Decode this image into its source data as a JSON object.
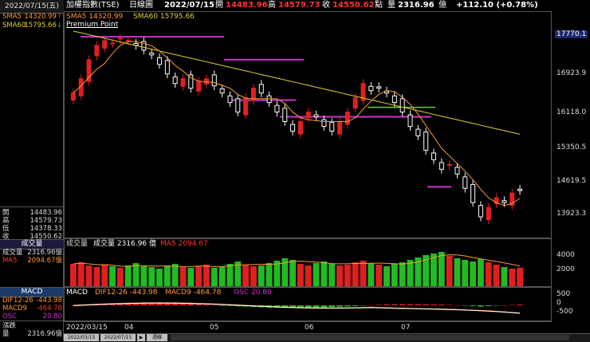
{
  "header": {
    "index_name": "加權指數(TSE)",
    "period": "日線圖",
    "date": "2022/07/15",
    "open_label": "開",
    "open": "14483.96",
    "high_label": "高",
    "high": "14579.73",
    "close_label": "收",
    "close": "14550.62",
    "points_label": "點",
    "volume_label": "量",
    "volume": "2316.96",
    "volume_unit": "億",
    "change": "+112.10 (+0.78%)"
  },
  "left_panel": {
    "date": "2022/07/15(五)",
    "sma5_label": "SMA5",
    "sma5": "14320.99",
    "sma60_label": "SMA60",
    "sma60": "15795.66",
    "ohlc": [
      {
        "label": "開",
        "value": "14483.96"
      },
      {
        "label": "高",
        "value": "14579.73"
      },
      {
        "label": "低",
        "value": "14378.33"
      },
      {
        "label": "收",
        "value": "14550.62"
      }
    ],
    "vol_title": "成交量",
    "vol_label": "成交量",
    "vol_value": "2316.96億",
    "ma5_label": "MA5",
    "ma5_value": "2094.67億",
    "macd_title": "MACD",
    "dif_label": "DIF12-26",
    "dif_value": "-443.98",
    "macd9_label": "MACD9",
    "macd9_value": "-464.78",
    "osc_label": "OSC",
    "osc_value": "20.80",
    "change_title": "漲跌",
    "change_sub": "量",
    "change_value": "2316.96億"
  },
  "price_pane": {
    "legend": {
      "sma5": "SMA5 14320.99",
      "sma60": "SMA60 15795.66",
      "premium": "Premium Point"
    },
    "axis": [
      "17770.1",
      "16923.9",
      "16118.0",
      "15350.5",
      "14619.5",
      "13923.3"
    ],
    "highlight_label": "17770.1"
  },
  "volume_pane": {
    "legend": {
      "title": "成交量",
      "vol": "成交量 2316.96",
      "unit": "億",
      "ma5": "MA5 2094.67"
    },
    "axis": [
      "4000",
      "2000"
    ]
  },
  "macd_pane": {
    "legend": {
      "title": "MACD",
      "dif": "DIF12-26 -443.98",
      "macd9": "MACD9 -464.78",
      "osc": "OSC 20.80"
    },
    "axis": [
      "500",
      "0",
      "-500"
    ]
  },
  "date_axis": {
    "start": "2022/03/15",
    "months": [
      "04",
      "05",
      "06",
      "07"
    ]
  },
  "bottom_strip": {
    "labels": [
      "2022/03/15",
      "2022/07/15",
      "▶",
      "週線"
    ]
  },
  "colors": {
    "up": "#e02020",
    "down": "#ffffff",
    "sma5": "#ff9933",
    "sma60": "#e0d030",
    "premium": "#cc33cc",
    "premium_green": "#66cc44",
    "vol_up": "#e02020",
    "vol_down": "#22bb22",
    "macd_dif": "#ff9933",
    "macd_signal": "#ffffff"
  },
  "chart_data": {
    "type": "candlestick",
    "x_range": [
      "2022/03/15",
      "2022/07/15"
    ],
    "y_range": [
      13700,
      18100
    ],
    "last_candle": {
      "open": 14483.96,
      "high": 14579.73,
      "low": 14378.33,
      "close": 14550.62
    },
    "sma5_last": 14320.99,
    "sma60_last": 15795.66,
    "volume_last": 2316.96,
    "volume_ma5_last": 2094.67,
    "macd": {
      "dif": -443.98,
      "macd9": -464.78,
      "osc": 20.8
    }
  }
}
